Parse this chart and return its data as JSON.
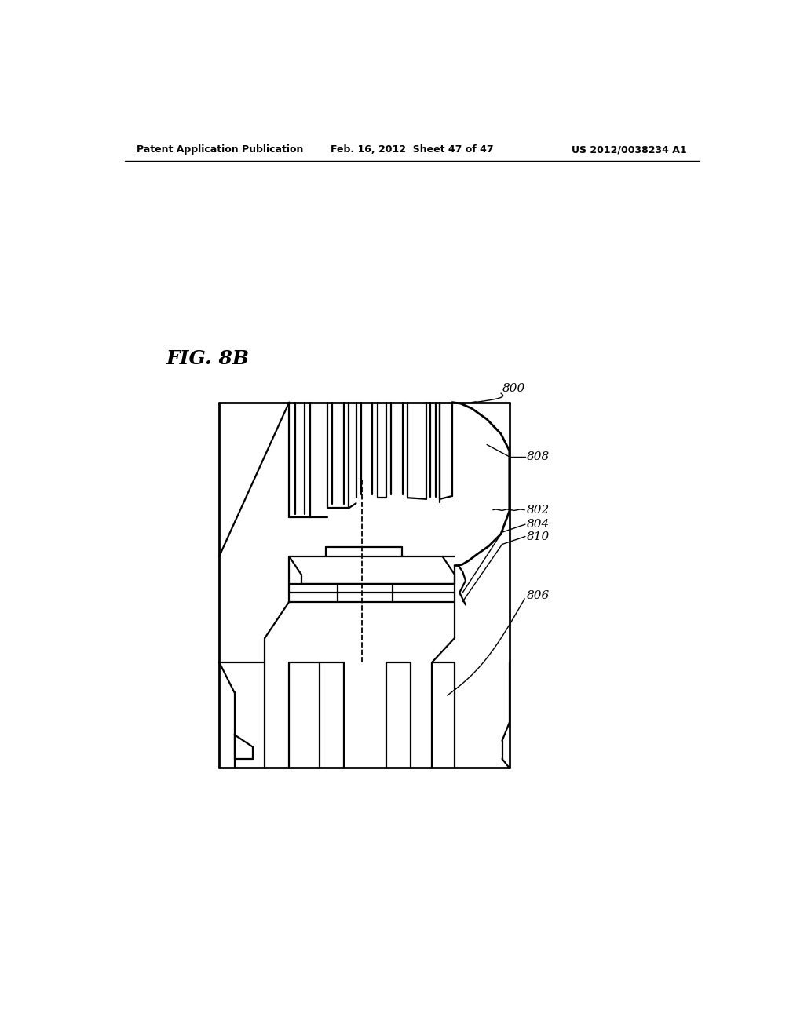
{
  "background_color": "#ffffff",
  "header_left": "Patent Application Publication",
  "header_mid": "Feb. 16, 2012  Sheet 47 of 47",
  "header_right": "US 2012/0038234 A1",
  "fig_label": "FIG. 8B",
  "line_color": "#000000",
  "lw": 1.6,
  "lw_thick": 2.0,
  "lw_thin": 1.0
}
